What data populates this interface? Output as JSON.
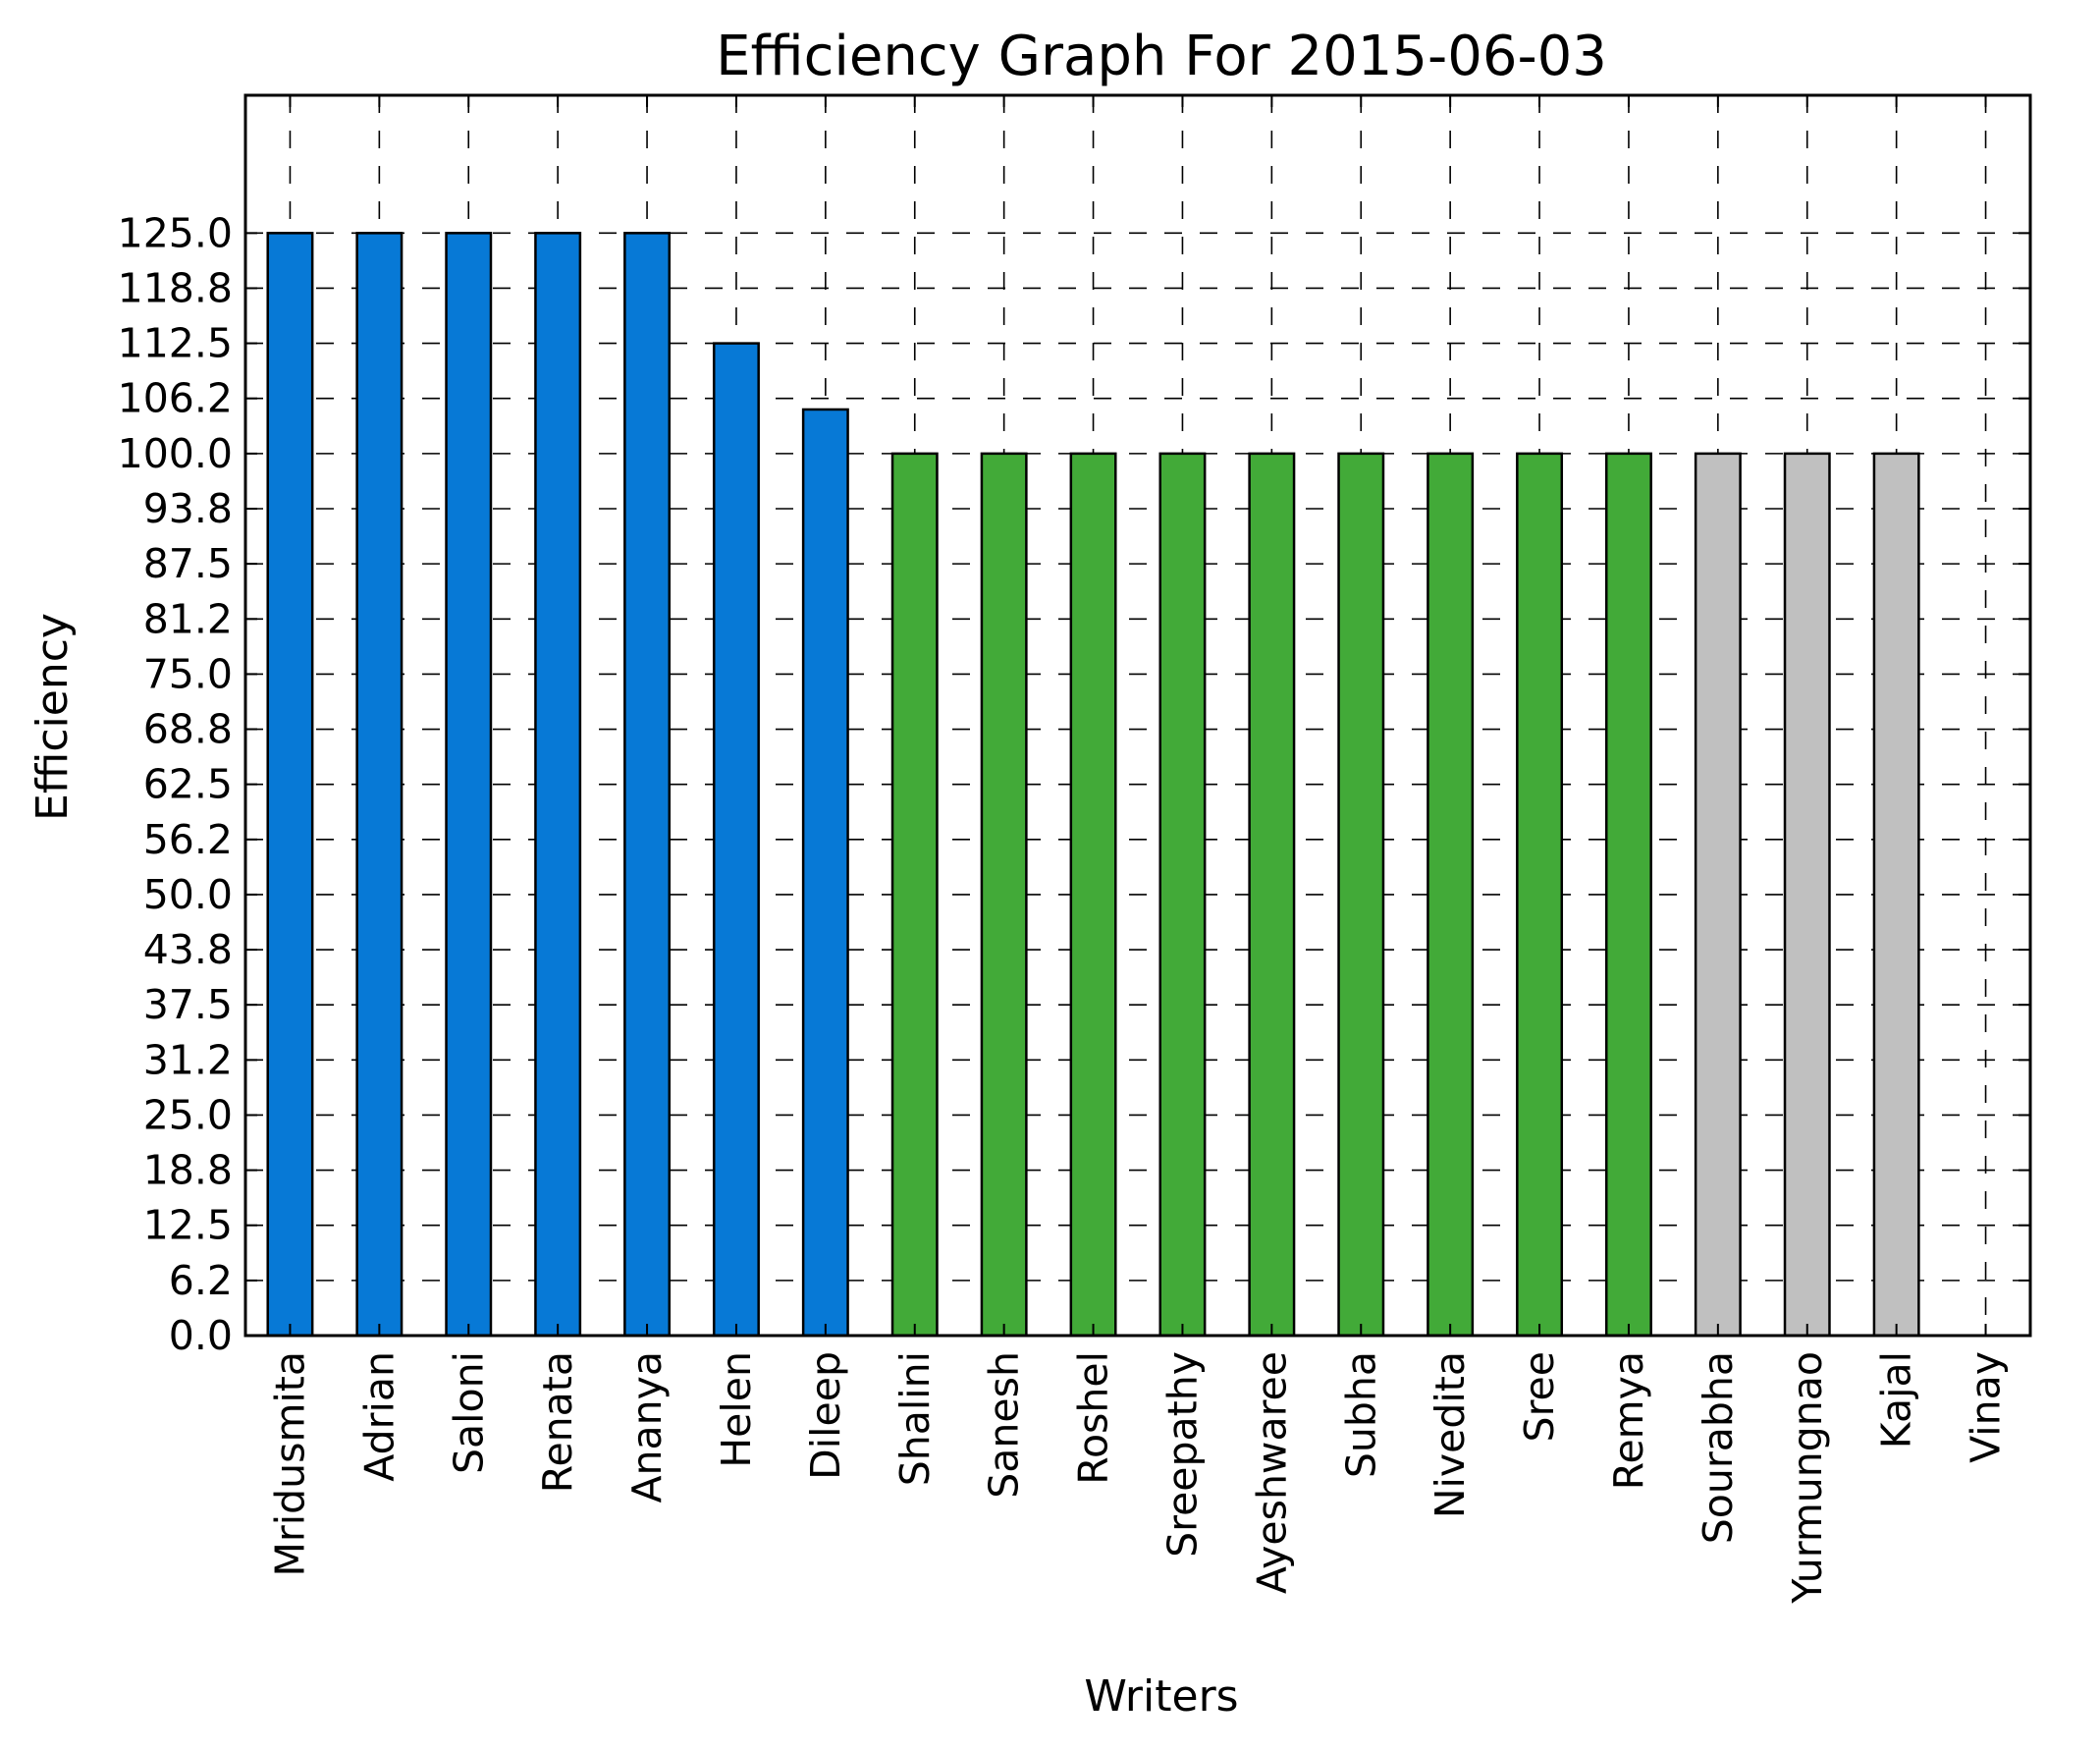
{
  "chart_data": {
    "type": "bar",
    "title": "Efficiency Graph For 2015-06-03",
    "xlabel": "Writers",
    "ylabel": "Efficiency",
    "ylim": [
      0,
      140.625
    ],
    "yticks": [
      "0.0",
      "6.2",
      "12.5",
      "18.8",
      "25.0",
      "31.2",
      "37.5",
      "43.8",
      "50.0",
      "56.2",
      "62.5",
      "68.8",
      "75.0",
      "81.2",
      "87.5",
      "93.8",
      "100.0",
      "106.2",
      "112.5",
      "118.8",
      "125.0"
    ],
    "ytick_values": [
      0,
      6.25,
      12.5,
      18.75,
      25,
      31.25,
      37.5,
      43.75,
      50,
      56.25,
      62.5,
      68.75,
      75,
      81.25,
      87.5,
      93.75,
      100,
      106.25,
      112.5,
      118.75,
      125
    ],
    "categories": [
      "Mridusmita",
      "Adrian",
      "Saloni",
      "Renata",
      "Ananya",
      "Helen",
      "Dileep",
      "Shalini",
      "Sanesh",
      "Roshel",
      "Sreepathy",
      "Ayeshwaree",
      "Subha",
      "Nivedita",
      "Sree",
      "Remya",
      "Sourabha",
      "Yurmungnao",
      "Kajal",
      "Vinay"
    ],
    "values": [
      125,
      125,
      125,
      125,
      125,
      112.5,
      105,
      100,
      100,
      100,
      100,
      100,
      100,
      100,
      100,
      100,
      100,
      100,
      100,
      0
    ],
    "bar_colors": [
      "#0779d6",
      "#0779d6",
      "#0779d6",
      "#0779d6",
      "#0779d6",
      "#0779d6",
      "#0779d6",
      "#42aa38",
      "#42aa38",
      "#42aa38",
      "#42aa38",
      "#42aa38",
      "#42aa38",
      "#42aa38",
      "#42aa38",
      "#42aa38",
      "#c0c0c0",
      "#c0c0c0",
      "#c0c0c0",
      "#c0c0c0"
    ],
    "grid": true,
    "grid_style": "dashed",
    "legend": false
  }
}
